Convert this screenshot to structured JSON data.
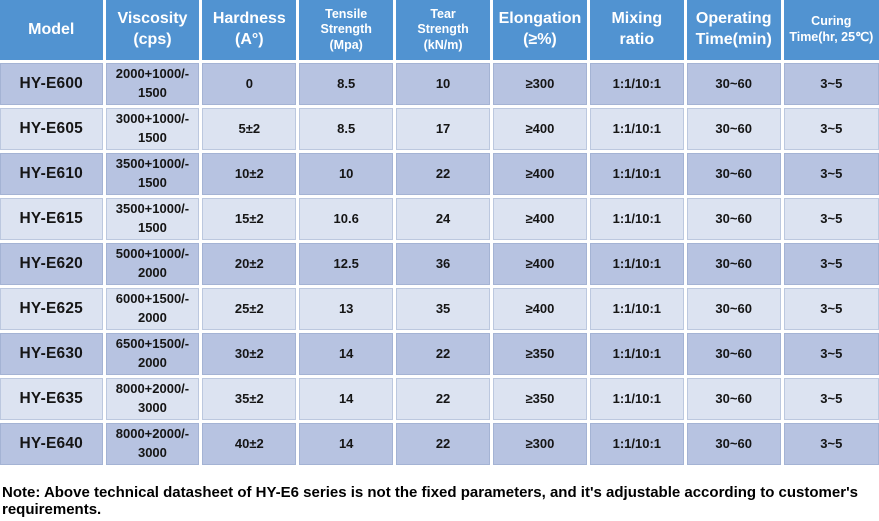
{
  "colors": {
    "header_bg": "#5193d1",
    "row_dark": "#b7c3e1",
    "row_light": "#dce3f1",
    "grid": "#ffffff",
    "header_text": "#ffffff",
    "body_text": "#151515"
  },
  "table": {
    "columns": [
      {
        "id": "model",
        "label": "Model",
        "small": false
      },
      {
        "id": "viscosity",
        "label": "Viscosity\n(cps)",
        "small": false
      },
      {
        "id": "hardness",
        "label": "Hardness\n(A°)",
        "small": false
      },
      {
        "id": "tensile-strength",
        "label": "Tensile\nStrength\n(Mpa)",
        "small": true
      },
      {
        "id": "tear-strength",
        "label": "Tear\nStrength\n(kN/m)",
        "small": true
      },
      {
        "id": "elongation",
        "label": "Elongation\n(≥%)",
        "small": false
      },
      {
        "id": "mixing-ratio",
        "label": "Mixing\nratio",
        "small": false
      },
      {
        "id": "operating-time",
        "label": "Operating\nTime(min)",
        "small": false
      },
      {
        "id": "curing-time",
        "label": "Curing\nTime(hr, 25℃)",
        "small": true
      }
    ],
    "rows": [
      {
        "cells": [
          "HY-E600",
          "2000+1000/-\n1500",
          "0",
          "8.5",
          "10",
          "≥300",
          "1:1/10:1",
          "30~60",
          "3~5"
        ]
      },
      {
        "cells": [
          "HY-E605",
          "3000+1000/-\n1500",
          "5±2",
          "8.5",
          "17",
          "≥400",
          "1:1/10:1",
          "30~60",
          "3~5"
        ]
      },
      {
        "cells": [
          "HY-E610",
          "3500+1000/-\n1500",
          "10±2",
          "10",
          "22",
          "≥400",
          "1:1/10:1",
          "30~60",
          "3~5"
        ]
      },
      {
        "cells": [
          "HY-E615",
          "3500+1000/-\n1500",
          "15±2",
          "10.6",
          "24",
          "≥400",
          "1:1/10:1",
          "30~60",
          "3~5"
        ]
      },
      {
        "cells": [
          "HY-E620",
          "5000+1000/-\n2000",
          "20±2",
          "12.5",
          "36",
          "≥400",
          "1:1/10:1",
          "30~60",
          "3~5"
        ]
      },
      {
        "cells": [
          "HY-E625",
          "6000+1500/-\n2000",
          "25±2",
          "13",
          "35",
          "≥400",
          "1:1/10:1",
          "30~60",
          "3~5"
        ]
      },
      {
        "cells": [
          "HY-E630",
          "6500+1500/-\n2000",
          "30±2",
          "14",
          "22",
          "≥350",
          "1:1/10:1",
          "30~60",
          "3~5"
        ]
      },
      {
        "cells": [
          "HY-E635",
          "8000+2000/-\n3000",
          "35±2",
          "14",
          "22",
          "≥350",
          "1:1/10:1",
          "30~60",
          "3~5"
        ]
      },
      {
        "cells": [
          "HY-E640",
          "8000+2000/-\n3000",
          "40±2",
          "14",
          "22",
          "≥300",
          "1:1/10:1",
          "30~60",
          "3~5"
        ]
      }
    ]
  },
  "note": "Note: Above technical datasheet of HY-E6 series is not the fixed parameters, and it's adjustable according to customer's requirements."
}
